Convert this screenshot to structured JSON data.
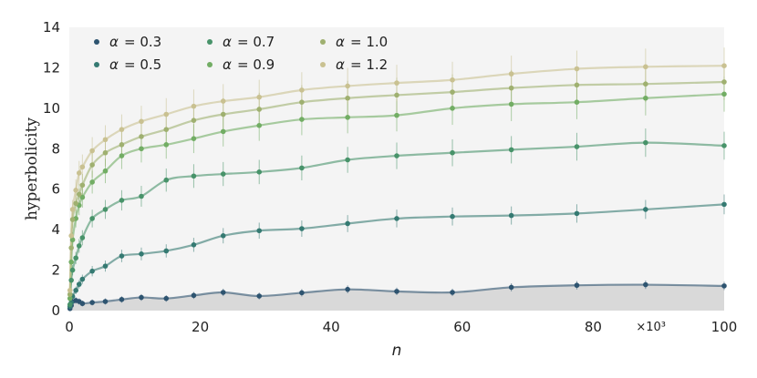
{
  "chart_data": {
    "type": "line",
    "xlabel": "n",
    "ylabel": "hyperbolicity",
    "x_multiplier": "×10³",
    "xlim": [
      0,
      100
    ],
    "ylim": [
      0,
      14
    ],
    "xticks": [
      0,
      20,
      40,
      60,
      80,
      100
    ],
    "yticks": [
      0,
      2,
      4,
      6,
      8,
      10,
      12,
      14
    ],
    "legend_position": "top-left",
    "grid": false,
    "background": "#f4f4f4",
    "baseline_band_color": "#d9d9d9",
    "x": [
      0.1,
      0.3,
      0.5,
      1,
      1.5,
      2,
      3.5,
      5.5,
      8,
      11,
      14.8,
      19,
      23.5,
      29,
      35.5,
      42.5,
      50,
      58.5,
      67.5,
      77.5,
      88,
      100
    ],
    "series": [
      {
        "name": "α = 0.3",
        "label_greek": "α",
        "label_value": "= 0.3",
        "color": "#2e5470",
        "values": [
          0.1,
          0.25,
          0.45,
          0.5,
          0.45,
          0.35,
          0.4,
          0.45,
          0.55,
          0.65,
          0.6,
          0.75,
          0.9,
          0.72,
          0.88,
          1.05,
          0.95,
          0.9,
          1.15,
          1.25,
          1.28,
          1.22
        ]
      },
      {
        "name": "α = 0.5",
        "label_greek": "α",
        "label_value": "= 0.5",
        "color": "#357a72",
        "values": [
          0.2,
          0.4,
          0.7,
          1.0,
          1.3,
          1.55,
          1.95,
          2.2,
          2.7,
          2.8,
          2.95,
          3.25,
          3.7,
          3.95,
          4.05,
          4.3,
          4.55,
          4.65,
          4.7,
          4.8,
          5.0,
          5.25
        ]
      },
      {
        "name": "α = 0.7",
        "label_greek": "α",
        "label_value": "= 0.7",
        "color": "#48936a",
        "values": [
          0.3,
          1.5,
          2.0,
          2.6,
          3.2,
          3.6,
          4.55,
          5.0,
          5.45,
          5.65,
          6.45,
          6.65,
          6.75,
          6.85,
          7.05,
          7.45,
          7.65,
          7.8,
          7.95,
          8.1,
          8.3,
          8.15
        ]
      },
      {
        "name": "α = 0.9",
        "label_greek": "α",
        "label_value": "= 0.9",
        "color": "#72ad64",
        "values": [
          0.6,
          2.4,
          3.5,
          4.55,
          5.2,
          5.6,
          6.35,
          6.9,
          7.65,
          8.0,
          8.2,
          8.5,
          8.85,
          9.15,
          9.45,
          9.55,
          9.65,
          10.0,
          10.2,
          10.3,
          10.5,
          10.7
        ]
      },
      {
        "name": "α = 1.0",
        "label_greek": "α",
        "label_value": "= 1.0",
        "color": "#9fb070",
        "values": [
          0.8,
          3.1,
          4.5,
          5.3,
          5.75,
          6.2,
          7.2,
          7.8,
          8.2,
          8.6,
          8.95,
          9.4,
          9.7,
          9.95,
          10.3,
          10.5,
          10.65,
          10.8,
          11.0,
          11.15,
          11.2,
          11.3
        ]
      },
      {
        "name": "α = 1.2",
        "label_greek": "α",
        "label_value": "= 1.2",
        "color": "#c9c191",
        "values": [
          1.0,
          3.7,
          5.0,
          5.95,
          6.8,
          7.1,
          7.9,
          8.45,
          8.95,
          9.35,
          9.7,
          10.1,
          10.35,
          10.55,
          10.9,
          11.1,
          11.25,
          11.4,
          11.7,
          11.95,
          12.05,
          12.1
        ]
      }
    ]
  }
}
